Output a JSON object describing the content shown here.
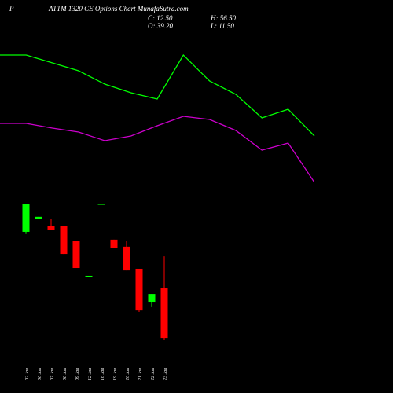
{
  "chart_data": [
    {
      "type": "line",
      "title": "ATTM 1320  CE Options  Chart MunafaSutra.com",
      "symbol": "P",
      "ohlc_labels": [
        "C: 12.50",
        "H: 56.50",
        "O: 39.20",
        "L: 11.50"
      ],
      "ylim": [
        0,
        100
      ],
      "series": [
        {
          "color": "#00ff00",
          "values": [
            90,
            90,
            85,
            80,
            71.5,
            66,
            62,
            90,
            73.5,
            65,
            50,
            55.5,
            38.5
          ]
        },
        {
          "color": "#cc00cc",
          "values": [
            46.5,
            46.5,
            43.5,
            41,
            35.5,
            38.5,
            45,
            51,
            49,
            42,
            29.5,
            34,
            9
          ]
        }
      ]
    },
    {
      "type": "candlestick",
      "categories": [
        "02 Jan",
        "06 Jan",
        "07 Jan",
        "08 Jan",
        "09 Jan",
        "12 Jan",
        "16 Jan",
        "19 Jan",
        "20 Jan",
        "21 Jan",
        "22 Jan",
        "23 Jan"
      ],
      "open": [
        69.7,
        76.5,
        72.7,
        72.7,
        64.6,
        45.6,
        84.5,
        65.5,
        61.7,
        49.8,
        32.0,
        39.2
      ],
      "high": [
        84.5,
        77.8,
        76.9,
        72.7,
        64.6,
        46.0,
        84.9,
        65.5,
        64.6,
        49.8,
        36.2,
        56.5
      ],
      "low": [
        68.5,
        76.5,
        70.6,
        57.8,
        50.2,
        45.6,
        84.5,
        61.2,
        48.9,
        26.5,
        29.5,
        11.5
      ],
      "close": [
        84.5,
        77.8,
        70.6,
        57.8,
        50.2,
        46.0,
        84.9,
        61.2,
        48.9,
        27.3,
        36.2,
        12.5
      ],
      "up_color": "#00ff00",
      "down_color": "#ff0000",
      "ylim": [
        10,
        90
      ]
    }
  ]
}
